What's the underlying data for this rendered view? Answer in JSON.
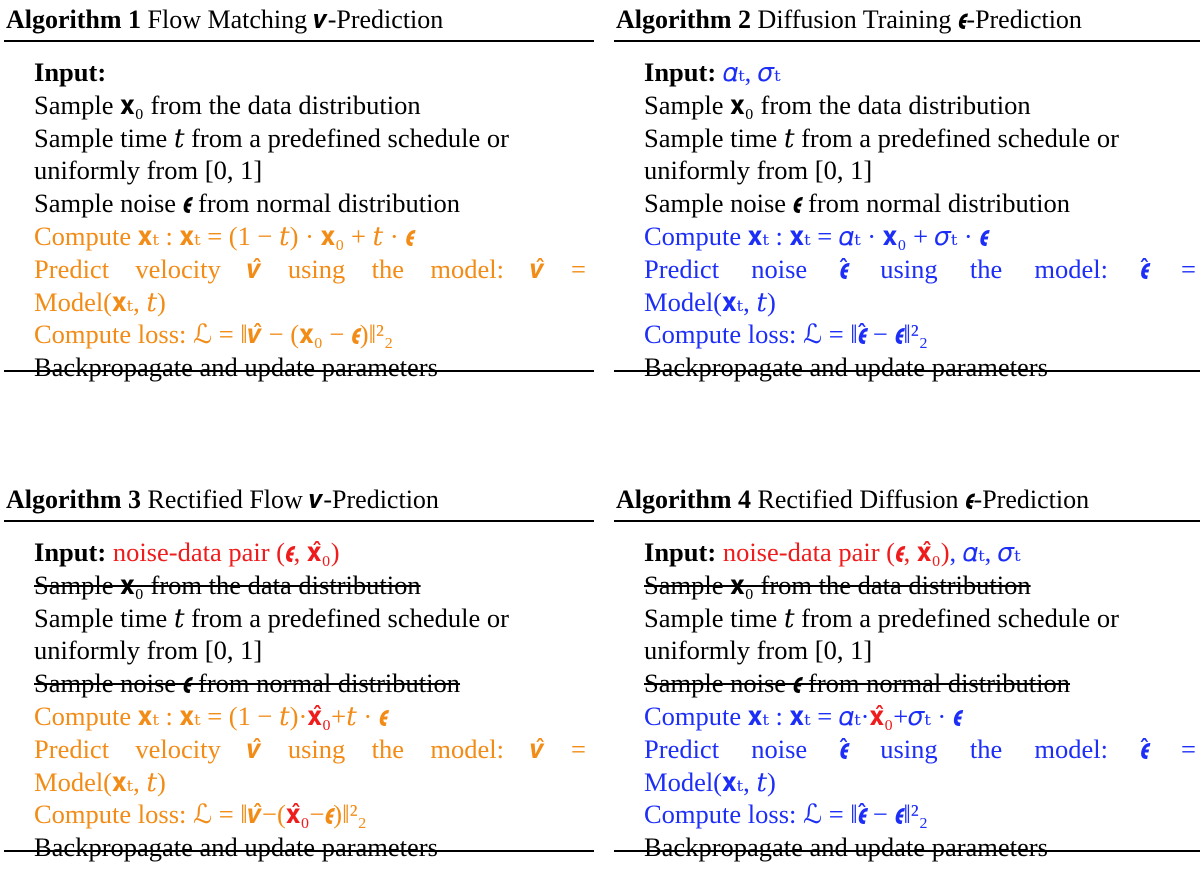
{
  "algorithms": [
    {
      "number": "Algorithm 1",
      "title": "Flow Matching 𝒗-Prediction",
      "input_label": "Input:",
      "input_extra": "",
      "input_extra2": "",
      "lines": {
        "sample_x0": "Sample 𝐱₀ from the data distribution",
        "sample_t_a": "Sample time 𝑡 from a predefined schedule or",
        "sample_t_b": "uniformly from [0, 1]",
        "sample_noise": "Sample noise 𝝐 from normal distribution",
        "compute_xt": "Compute 𝐱ₜ : 𝐱ₜ = (1 − 𝑡) · 𝐱₀ + 𝑡 · 𝝐",
        "predict_a": [
          "Predict",
          "velocity",
          "𝒗̂",
          "using",
          "the",
          "model:",
          "𝒗̂",
          "="
        ],
        "predict_b": "Model(𝐱ₜ, 𝑡)",
        "loss": "Compute loss: ℒ = ‖𝒗̂ − (𝐱₀ − 𝝐)‖²₂",
        "backprop": "Backpropagate and update parameters"
      }
    },
    {
      "number": "Algorithm 2",
      "title": "Diffusion Training 𝝐-Prediction",
      "input_label": "Input:",
      "input_extra": "𝛼ₜ, 𝜎ₜ",
      "input_extra2": "",
      "lines": {
        "sample_x0": "Sample 𝐱₀ from the data distribution",
        "sample_t_a": "Sample time 𝑡 from a predefined schedule or",
        "sample_t_b": "uniformly from [0, 1]",
        "sample_noise": "Sample noise 𝝐 from normal distribution",
        "compute_xt": "Compute 𝐱ₜ : 𝐱ₜ = 𝛼ₜ · 𝐱₀ + 𝜎ₜ · 𝝐",
        "predict_a": [
          "Predict",
          "noise",
          "𝝐̂",
          "using",
          "the",
          "model:",
          "𝝐̂",
          "="
        ],
        "predict_b": "Model(𝐱ₜ, 𝑡)",
        "loss": "Compute loss: ℒ = ‖𝝐̂ − 𝝐‖²₂",
        "backprop": "Backpropagate and update parameters"
      }
    },
    {
      "number": "Algorithm 3",
      "title": "Rectified Flow 𝒗-Prediction",
      "input_label": "Input:",
      "input_extra": "noise-data pair (𝝐, 𝐱̂₀)",
      "input_extra2": "",
      "lines": {
        "sample_x0": "Sample 𝐱₀ from the data distribution",
        "sample_t_a": "Sample time 𝑡 from a predefined schedule or",
        "sample_t_b": "uniformly from [0, 1]",
        "sample_noise": "Sample noise 𝝐 from normal distribution",
        "compute_xt_a": "Compute 𝐱ₜ : 𝐱ₜ = (1 − 𝑡)·",
        "compute_xt_hl": "𝐱̂₀",
        "compute_xt_b": "+𝑡 · 𝝐",
        "predict_a": [
          "Predict",
          "velocity",
          "𝒗̂",
          "using",
          "the",
          "model:",
          "𝒗̂",
          "="
        ],
        "predict_b": "Model(𝐱ₜ, 𝑡)",
        "loss_a": "Compute loss: ℒ = ‖𝒗̂−(",
        "loss_hl": "𝐱̂₀",
        "loss_b": "−𝝐)‖²₂",
        "backprop": "Backpropagate and update parameters"
      }
    },
    {
      "number": "Algorithm 4",
      "title": "Rectified Diffusion 𝝐-Prediction",
      "input_label": "Input:",
      "input_extra": "noise-data pair (𝝐, 𝐱̂₀)",
      "input_extra2": ", 𝛼ₜ, 𝜎ₜ",
      "lines": {
        "sample_x0": "Sample 𝐱₀ from the data distribution",
        "sample_t_a": "Sample time 𝑡 from a predefined schedule or",
        "sample_t_b": "uniformly from [0, 1]",
        "sample_noise": "Sample noise 𝝐 from normal distribution",
        "compute_xt_a": "Compute 𝐱ₜ : 𝐱ₜ = 𝛼ₜ·",
        "compute_xt_hl": "𝐱̂₀",
        "compute_xt_b": "+𝜎ₜ · 𝝐",
        "predict_a": [
          "Predict",
          "noise",
          "𝝐̂",
          "using",
          "the",
          "model:",
          "𝝐̂",
          "="
        ],
        "predict_b": "Model(𝐱ₜ, 𝑡)",
        "loss": "Compute loss: ℒ = ‖𝝐̂ − 𝝐‖²₂",
        "backprop": "Backpropagate and update parameters"
      }
    }
  ],
  "colors": {
    "orange": "#f28c17",
    "blue": "#1d2ef7",
    "red": "#ee1c1c"
  }
}
